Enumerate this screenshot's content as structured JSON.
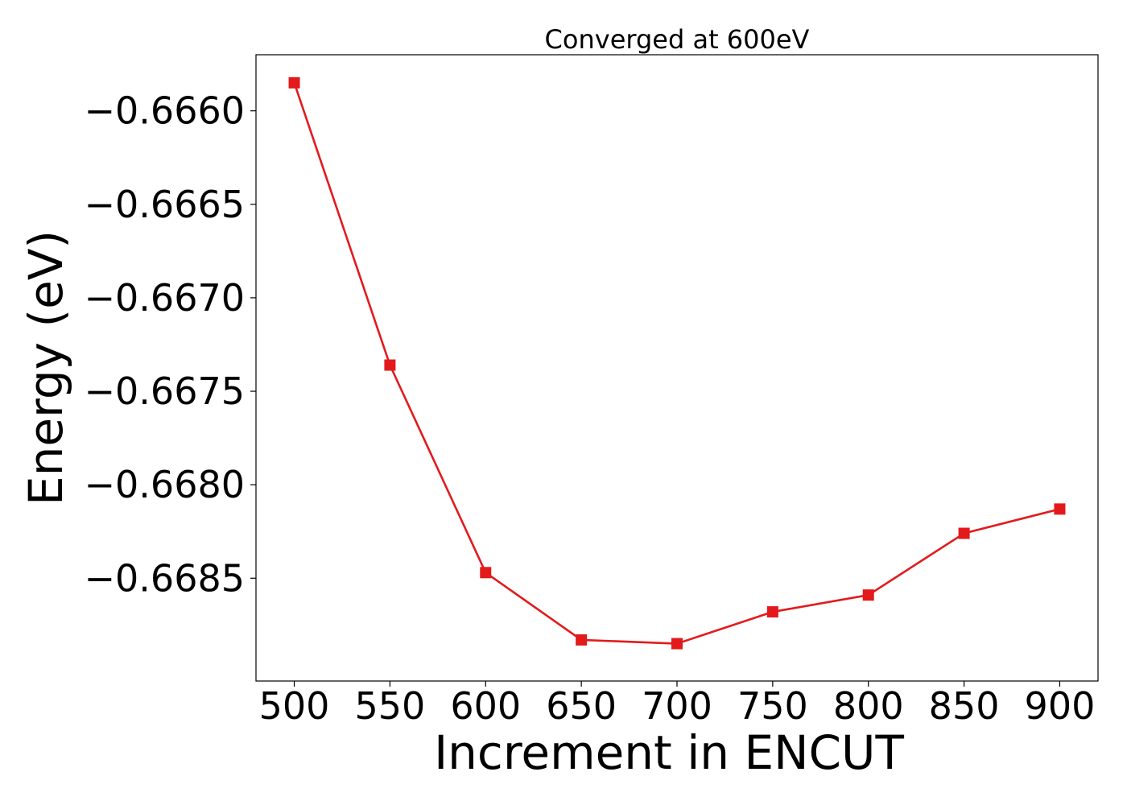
{
  "chart_data": {
    "type": "line",
    "title": "Converged at 600eV",
    "xlabel": "Increment in ENCUT",
    "ylabel": "Energy (eV)",
    "x": [
      500,
      550,
      600,
      650,
      700,
      750,
      800,
      850,
      900
    ],
    "series": [
      {
        "color": "#e31a1c",
        "marker": "square",
        "values": [
          -0.66585,
          -0.66736,
          -0.66847,
          -0.66883,
          -0.66885,
          -0.66868,
          -0.66859,
          -0.66826,
          -0.66813
        ]
      }
    ],
    "xticks": [
      500,
      550,
      600,
      650,
      700,
      750,
      800,
      850,
      900
    ],
    "xtick_labels": [
      "500",
      "550",
      "600",
      "650",
      "700",
      "750",
      "800",
      "850",
      "900"
    ],
    "yticks": [
      -0.666,
      -0.6665,
      -0.667,
      -0.6675,
      -0.668,
      -0.6685
    ],
    "ytick_labels": [
      "−0.6660",
      "−0.6665",
      "−0.6670",
      "−0.6675",
      "−0.6680",
      "−0.6685"
    ],
    "xlim": [
      480,
      920
    ],
    "ylim": [
      -0.66905,
      -0.6657
    ],
    "grid": false,
    "legend": false
  }
}
